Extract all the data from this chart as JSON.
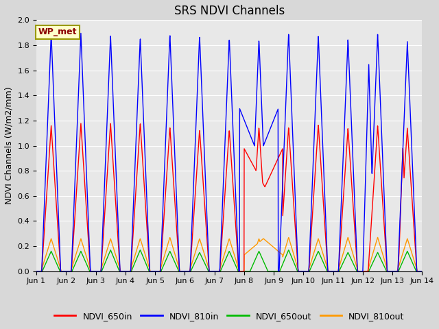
{
  "title": "SRS NDVI Channels",
  "ylabel": "NDVI Channels (W/m2/mm)",
  "ylim": [
    0.0,
    2.0
  ],
  "yticks": [
    0.0,
    0.2,
    0.4,
    0.6,
    0.8,
    1.0,
    1.2,
    1.4,
    1.6,
    1.8,
    2.0
  ],
  "xtick_labels": [
    "Jun 1",
    "Jun 2",
    "Jun 3",
    "Jun 4",
    "Jun 5",
    "Jun 6",
    "Jun 7",
    "Jun 8",
    "Jun 9",
    "Jun 10",
    "Jun 11",
    "Jun 12",
    "Jun 13",
    "Jun 14"
  ],
  "colors": {
    "NDVI_650in": "#ff0000",
    "NDVI_810in": "#0000ff",
    "NDVI_650out": "#00bb00",
    "NDVI_810out": "#ff9900"
  },
  "legend_label": "WP_met",
  "background_color": "#e8e8e8",
  "grid_color": "#ffffff",
  "title_fontsize": 12,
  "axis_fontsize": 9,
  "figsize": [
    6.4,
    4.8
  ],
  "dpi": 100
}
